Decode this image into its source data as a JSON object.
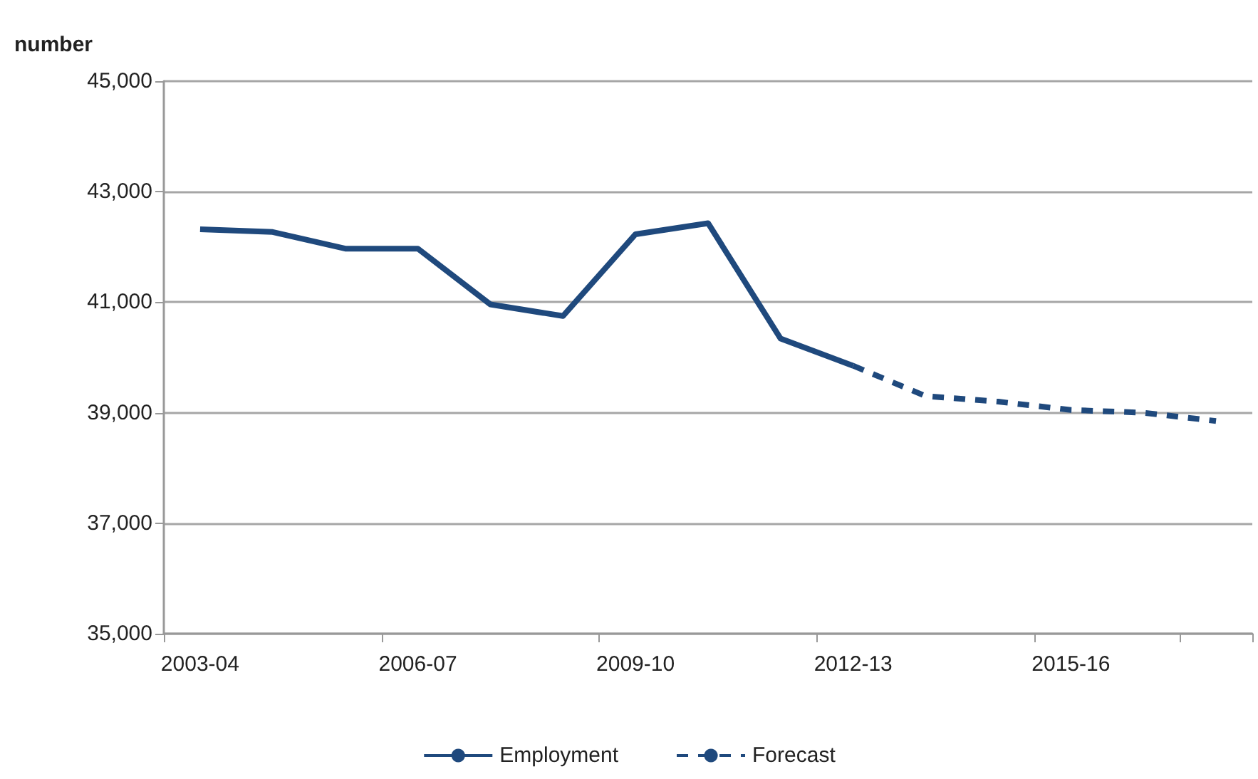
{
  "chart_data": {
    "type": "line",
    "ylabel": "number",
    "categories": [
      "2003-04",
      null,
      null,
      "2006-07",
      null,
      null,
      "2009-10",
      null,
      null,
      "2012-13",
      null,
      null,
      "2015-16",
      null,
      null
    ],
    "series": [
      {
        "name": "Employment",
        "color": "#1f497d",
        "line_style": "solid",
        "values": [
          42320,
          42270,
          41970,
          41970,
          40960,
          40750,
          42230,
          42430,
          40340,
          39850,
          null,
          null,
          null,
          null,
          null
        ]
      },
      {
        "name": "Forecast",
        "color": "#1f497d",
        "line_style": "dashed",
        "values": [
          null,
          null,
          null,
          null,
          null,
          null,
          null,
          null,
          null,
          39850,
          39300,
          39200,
          39050,
          39000,
          38850
        ]
      }
    ],
    "ylim": [
      35000,
      45000
    ],
    "yticks": [
      {
        "value": 35000,
        "label": "35,000"
      },
      {
        "value": 37000,
        "label": "37,000"
      },
      {
        "value": 39000,
        "label": "39,000"
      },
      {
        "value": 41000,
        "label": "41,000"
      },
      {
        "value": 43000,
        "label": "43,000"
      },
      {
        "value": 45000,
        "label": "45,000"
      }
    ],
    "grid": "y",
    "legend": "bottom",
    "marker": "none"
  }
}
